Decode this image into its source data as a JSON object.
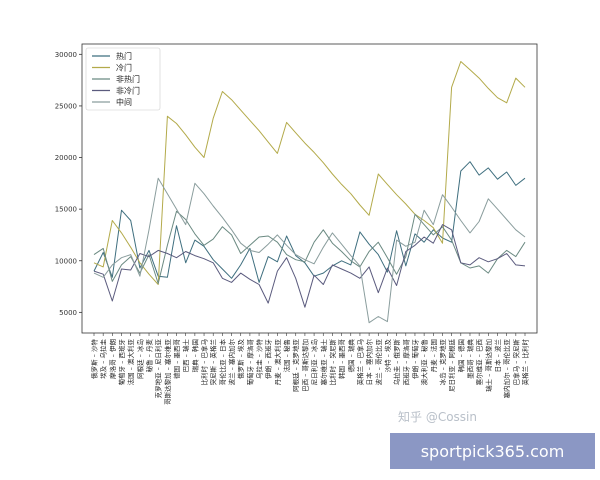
{
  "chart_data": {
    "type": "line",
    "title": "",
    "xlabel": "",
    "ylabel": "",
    "ylim": [
      3000,
      31000
    ],
    "yticks": [
      5000,
      10000,
      15000,
      20000,
      25000,
      30000
    ],
    "grid": false,
    "legend_position": "top-left",
    "categories": [
      "俄罗斯 – 沙特",
      "埃及 – 乌拉圭",
      "摩洛哥 – 伊朗",
      "葡萄牙 – 西班牙",
      "法国 – 澳大利亚",
      "阿根廷 – 冰岛",
      "秘鲁 – 丹麦",
      "克罗地亚 – 尼日利亚",
      "哥斯达黎加 – 塞尔维亚",
      "德国 – 墨西哥",
      "巴西 – 瑞士",
      "瑞典 – 韩国",
      "比利时 – 巴拿马",
      "突尼斯 – 英格兰",
      "哥伦比亚 – 日本",
      "波兰 – 塞内加尔",
      "俄罗斯 – 埃及",
      "葡萄牙 – 摩洛哥",
      "乌拉圭 – 沙特",
      "伊朗 – 西班牙",
      "丹麦 – 澳大利亚",
      "法国 – 秘鲁",
      "阿根廷 – 克罗地亚",
      "巴西 – 哥斯达黎加",
      "尼日利亚 – 冰岛",
      "塞尔维亚 – 瑞士",
      "比利时 – 突尼斯",
      "韩国 – 墨西哥",
      "德国 – 瑞典",
      "英格兰 – 巴拿马",
      "日本 – 塞内加尔",
      "波兰 – 哥伦比亚",
      "沙特 – 埃及",
      "乌拉圭 – 俄罗斯",
      "西班牙 – 摩洛哥",
      "伊朗 – 葡萄牙",
      "澳大利亚 – 秘鲁",
      "丹麦 – 法国",
      "冰岛 – 克罗地亚",
      "尼日利亚 – 阿根廷",
      "韩国 – 德国",
      "墨西哥 – 瑞典",
      "塞尔维亚 – 巴西",
      "瑞士 – 哥斯达黎加",
      "日本 – 波兰",
      "塞内加尔 – 哥伦比亚",
      "巴拿马 – 突尼斯",
      "英格兰 – 比利时"
    ],
    "series": [
      {
        "name": "热门",
        "color": "#3f6f7f",
        "values": [
          9000,
          10800,
          8400,
          14900,
          13900,
          9300,
          11000,
          8500,
          8400,
          13400,
          9800,
          12000,
          11400,
          10100,
          9200,
          8300,
          9600,
          11200,
          7900,
          10400,
          9900,
          12400,
          10500,
          9800,
          8500,
          8800,
          9500,
          10000,
          9600,
          12800,
          11600,
          10600,
          8900,
          12900,
          9500,
          12600,
          11800,
          13000,
          12200,
          11800,
          18700,
          19600,
          18300,
          19000,
          17900,
          18600,
          17300,
          18000
        ]
      },
      {
        "name": "冷门",
        "color": "#b3aa4a",
        "values": [
          9800,
          9400,
          13900,
          12700,
          11300,
          9800,
          8700,
          7700,
          24000,
          23300,
          22200,
          21000,
          20000,
          23800,
          26400,
          25600,
          24600,
          23600,
          22600,
          21500,
          20400,
          23400,
          22400,
          21400,
          20500,
          19500,
          18400,
          17400,
          16500,
          15400,
          14400,
          18400,
          17400,
          16400,
          15500,
          14500,
          13900,
          13200,
          11700,
          26800,
          29300,
          28500,
          27700,
          26700,
          25800,
          25300,
          27700,
          26800
        ]
      },
      {
        "name": "非热门",
        "color": "#6b8a82",
        "values": [
          10600,
          11200,
          8000,
          9600,
          10400,
          8800,
          10600,
          7800,
          11500,
          14800,
          14000,
          12600,
          11500,
          12100,
          13300,
          12500,
          10700,
          11500,
          12300,
          12400,
          11800,
          10600,
          10100,
          9900,
          11800,
          13000,
          11700,
          10900,
          10000,
          9400,
          10900,
          11800,
          10300,
          8700,
          10400,
          14500,
          13500,
          12500,
          13300,
          12000,
          9800,
          9300,
          9500,
          8800,
          10200,
          11000,
          10400,
          11800
        ]
      },
      {
        "name": "非冷门",
        "color": "#5b5b7e",
        "values": [
          9000,
          8700,
          6100,
          9200,
          9100,
          10700,
          10400,
          11000,
          10700,
          10300,
          10900,
          10500,
          10200,
          9800,
          8300,
          7900,
          8800,
          8200,
          7700,
          5900,
          9000,
          10300,
          8300,
          5500,
          8600,
          7700,
          9600,
          9200,
          8800,
          8300,
          9400,
          6900,
          9300,
          7600,
          10900,
          11500,
          12300,
          11700,
          13500,
          13000,
          9800,
          9600,
          10300,
          9900,
          10200,
          10700,
          9600,
          9500
        ]
      },
      {
        "name": "中间",
        "color": "#8a9d9d",
        "values": [
          8800,
          8400,
          9600,
          10300,
          10600,
          8500,
          13000,
          18000,
          16500,
          15000,
          13500,
          17500,
          16500,
          15300,
          14200,
          13000,
          11700,
          11000,
          10800,
          11600,
          12500,
          11500,
          10600,
          10100,
          9700,
          11300,
          12700,
          11600,
          10500,
          9500,
          4000,
          4600,
          4100,
          12000,
          11400,
          11800,
          14900,
          13500,
          16400,
          15200,
          13900,
          12700,
          13800,
          16000,
          15000,
          14000,
          13000,
          12300
        ]
      }
    ]
  },
  "watermark": "知乎 @Cossin",
  "banner": "sportpick365.com"
}
